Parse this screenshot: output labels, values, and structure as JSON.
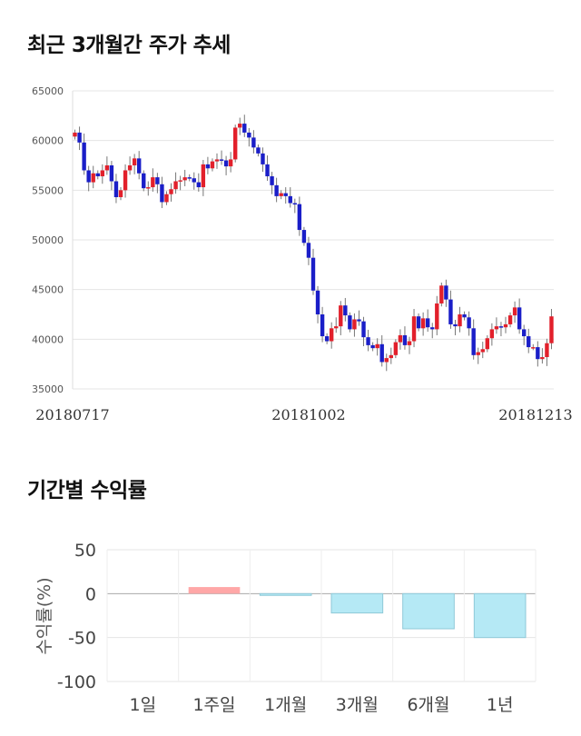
{
  "section1_title": "최근 3개월간 주가 추세",
  "section2_title": "기간별 수익률",
  "colors": {
    "up": "#e2202b",
    "down": "#1a1ec8",
    "grid": "#e5e5e5",
    "pos_bar": "#ffa7a7",
    "neg_bar": "#b5e9f5",
    "neg_bar_edge": "#8fc9d8"
  },
  "chart_data": [
    {
      "type": "candlestick",
      "title": "최근 3개월간 주가 추세",
      "ylim": [
        35000,
        65000
      ],
      "y_ticks": [
        35000,
        40000,
        45000,
        50000,
        55000,
        60000,
        65000
      ],
      "x_tick_labels": [
        "20180717",
        "20181002",
        "20181213"
      ],
      "close": [
        60800,
        59800,
        57000,
        55800,
        56700,
        56400,
        57000,
        57500,
        55900,
        54300,
        55000,
        57000,
        57500,
        58200,
        56700,
        55200,
        55300,
        56300,
        55600,
        53800,
        54600,
        55100,
        55900,
        56000,
        56300,
        56200,
        55800,
        55300,
        57600,
        57200,
        57900,
        58100,
        58000,
        57400,
        58100,
        61300,
        61700,
        60800,
        60300,
        59300,
        58700,
        57600,
        56400,
        55500,
        54400,
        54700,
        54400,
        53700,
        53600,
        51000,
        49700,
        48200,
        44900,
        42500,
        40300,
        39800,
        41100,
        41300,
        43400,
        42400,
        41000,
        42000,
        41800,
        40200,
        39400,
        39100,
        39500,
        37700,
        38100,
        38400,
        39700,
        40400,
        39400,
        39800,
        42300,
        41100,
        42100,
        41200,
        41000,
        43600,
        45400,
        44000,
        41500,
        41300,
        42500,
        42200,
        41100,
        38400,
        38700,
        39000,
        40100,
        41000,
        41300,
        41200,
        41500,
        42400,
        43200,
        41000,
        40300,
        39200,
        39200,
        38000,
        38200,
        39600,
        42300
      ],
      "open_hint": "approximate candles read from image"
    },
    {
      "type": "bar",
      "title": "기간별 수익률",
      "ylabel": "수익률(%)",
      "categories": [
        "1일",
        "1주일",
        "1개월",
        "3개월",
        "6개월",
        "1년"
      ],
      "values": [
        0,
        7.5,
        -2,
        -22,
        -40,
        -50
      ],
      "ylim": [
        -100,
        50
      ],
      "y_ticks": [
        50,
        0,
        -50,
        -100
      ]
    }
  ]
}
